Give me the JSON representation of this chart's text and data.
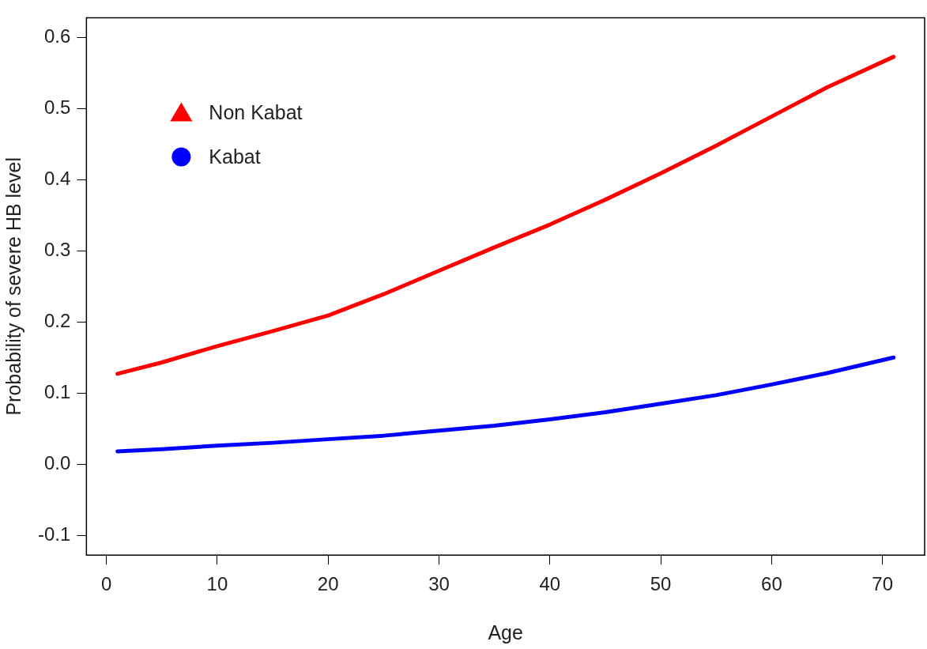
{
  "chart_data": {
    "type": "line",
    "xlabel": "Age",
    "ylabel": "Probability of severe HB level",
    "xlim": [
      -1.8,
      73.8
    ],
    "xticks": [
      0,
      10,
      20,
      30,
      40,
      50,
      60,
      70
    ],
    "ylim": [
      -0.128,
      0.628
    ],
    "yticks": [
      -0.1,
      {
        "value": 0,
        "label": "0.0"
      },
      0.1,
      0.2,
      0.3,
      0.4,
      0.5,
      0.6
    ],
    "grid": false,
    "legend": "top left",
    "line_style": "solid",
    "series": [
      {
        "name": "Non Kabat",
        "color": "#ff0000",
        "x": [
          1,
          5,
          10,
          15,
          20,
          25,
          30,
          35,
          40,
          45,
          50,
          55,
          60,
          65,
          71
        ],
        "values": [
          0.127,
          0.143,
          0.166,
          0.187,
          0.209,
          0.239,
          0.272,
          0.305,
          0.337,
          0.372,
          0.409,
          0.448,
          0.489,
          0.53,
          0.573
        ]
      },
      {
        "name": "Kabat",
        "color": "#0000ff",
        "x": [
          1,
          5,
          10,
          15,
          20,
          25,
          30,
          35,
          40,
          45,
          50,
          55,
          60,
          65,
          71
        ],
        "values": [
          0.018,
          0.021,
          0.026,
          0.03,
          0.035,
          0.04,
          0.047,
          0.054,
          0.063,
          0.073,
          0.085,
          0.097,
          0.112,
          0.128,
          0.15
        ]
      }
    ]
  }
}
